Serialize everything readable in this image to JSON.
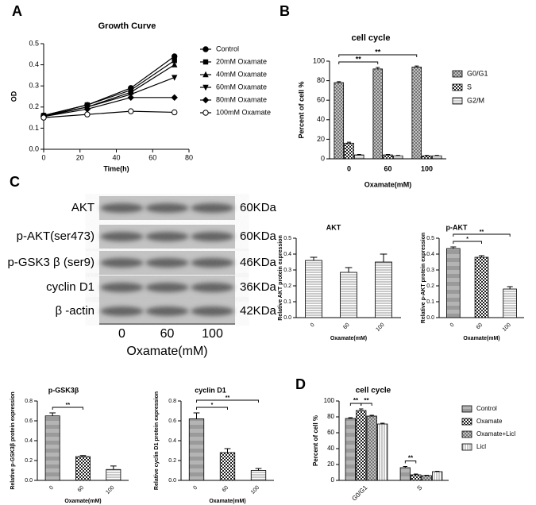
{
  "chart_data": [
    {
      "type": "line",
      "label": "A",
      "title": "Growth Curve",
      "xlabel": "Time(h)",
      "ylabel": "OD",
      "x": [
        0,
        24,
        48,
        72
      ],
      "xlim": [
        0,
        80
      ],
      "xticks": [
        0,
        20,
        40,
        60,
        80
      ],
      "ylim": [
        0,
        0.5
      ],
      "yticks": [
        {
          "value": 0,
          "label": "0.0"
        },
        {
          "value": 0.1,
          "label": "0.1"
        },
        {
          "value": 0.2,
          "label": "0.2"
        },
        {
          "value": 0.3,
          "label": "0.3"
        },
        {
          "value": 0.4,
          "label": "0.4"
        },
        {
          "value": 0.5,
          "label": "0.5"
        }
      ],
      "series": [
        {
          "name": "Control",
          "marker": "circle",
          "values": [
            0.16,
            0.21,
            0.29,
            0.44
          ]
        },
        {
          "name": "20mM Oxamate",
          "marker": "square",
          "values": [
            0.16,
            0.21,
            0.28,
            0.42
          ]
        },
        {
          "name": "40mM Oxamate",
          "marker": "triangle",
          "values": [
            0.16,
            0.2,
            0.27,
            0.4
          ]
        },
        {
          "name": "60mM Oxamate",
          "marker": "triangle-down",
          "values": [
            0.155,
            0.2,
            0.26,
            0.34
          ]
        },
        {
          "name": "80mM Oxamate",
          "marker": "diamond",
          "values": [
            0.155,
            0.19,
            0.245,
            0.245
          ]
        },
        {
          "name": "100mM Oxamate",
          "marker": "open-circle",
          "values": [
            0.15,
            0.165,
            0.18,
            0.175
          ]
        }
      ]
    },
    {
      "type": "bar",
      "label": "B",
      "title": "cell cycle",
      "xlabel": "Oxamate(mM)",
      "ylabel": "Percent of cell %",
      "categories": [
        "0",
        "60",
        "100"
      ],
      "ylim": [
        0,
        100
      ],
      "yticks": [
        0,
        20,
        40,
        60,
        80,
        100
      ],
      "series": [
        {
          "name": "G0/G1",
          "pattern": "crosshatch",
          "values": [
            78,
            92,
            94
          ],
          "errors": [
            1,
            1.5,
            1
          ]
        },
        {
          "name": "S",
          "pattern": "checker",
          "values": [
            16,
            4,
            3
          ],
          "errors": [
            1,
            0.5,
            0.5
          ]
        },
        {
          "name": "G2/M",
          "pattern": "horizontal",
          "values": [
            4,
            3,
            3
          ],
          "errors": [
            0.5,
            0.5,
            0.5
          ]
        }
      ],
      "annotations": [
        {
          "text": "**",
          "between": [
            {
              "category": "0",
              "series": "G0/G1"
            },
            {
              "category": "60",
              "series": "G0/G1"
            }
          ]
        },
        {
          "text": "**",
          "between": [
            {
              "category": "0",
              "series": "G0/G1"
            },
            {
              "category": "100",
              "series": "G0/G1"
            }
          ]
        }
      ]
    },
    {
      "type": "bar",
      "title": "AKT",
      "xlabel": "Oxamate(mM)",
      "ylabel": "Relative AKT protein expression",
      "categories": [
        "0",
        "60",
        "100"
      ],
      "values": [
        0.36,
        0.285,
        0.35
      ],
      "errors": [
        0.02,
        0.03,
        0.05
      ],
      "patterns": [
        "horizontal",
        "horizontal",
        "horizontal"
      ],
      "ylim": [
        0,
        0.5
      ],
      "yticks": [
        {
          "value": 0,
          "label": "0.0"
        },
        {
          "value": 0.1,
          "label": "0.1"
        },
        {
          "value": 0.2,
          "label": "0.2"
        },
        {
          "value": 0.3,
          "label": "0.3"
        },
        {
          "value": 0.4,
          "label": "0.4"
        },
        {
          "value": 0.5,
          "label": "0.5"
        }
      ]
    },
    {
      "type": "bar",
      "title": "p-AKT",
      "xlabel": "Oxamate(mM)",
      "ylabel": "Relative p-AKT protein expression",
      "categories": [
        "0",
        "60",
        "100"
      ],
      "values": [
        0.435,
        0.38,
        0.18
      ],
      "errors": [
        0.01,
        0.01,
        0.015
      ],
      "patterns": [
        "gradient",
        "checker",
        "horizontal"
      ],
      "ylim": [
        0,
        0.5
      ],
      "yticks": [
        {
          "value": 0,
          "label": "0.0"
        },
        {
          "value": 0.1,
          "label": "0.1"
        },
        {
          "value": 0.2,
          "label": "0.2"
        },
        {
          "value": 0.3,
          "label": "0.3"
        },
        {
          "value": 0.4,
          "label": "0.4"
        },
        {
          "value": 0.5,
          "label": "0.5"
        }
      ],
      "annotations": [
        {
          "text": "*",
          "between": [
            {
              "category": "0"
            },
            {
              "category": "60"
            }
          ]
        },
        {
          "text": "**",
          "between": [
            {
              "category": "0"
            },
            {
              "category": "100"
            }
          ]
        }
      ]
    },
    {
      "type": "bar",
      "title": "p-GSK3β",
      "xlabel": "Oxamate(mM)",
      "ylabel": "Relative p-GSK3β protein expression",
      "categories": [
        "0",
        "60",
        "100"
      ],
      "values": [
        0.65,
        0.24,
        0.11
      ],
      "errors": [
        0.03,
        0.01,
        0.035
      ],
      "patterns": [
        "gradient",
        "checker",
        "horizontal"
      ],
      "ylim": [
        0,
        0.8
      ],
      "yticks": [
        {
          "value": 0,
          "label": "0.0"
        },
        {
          "value": 0.2,
          "label": "0.2"
        },
        {
          "value": 0.4,
          "label": "0.4"
        },
        {
          "value": 0.6,
          "label": "0.6"
        },
        {
          "value": 0.8,
          "label": "0.8"
        }
      ],
      "annotations": [
        {
          "text": "**",
          "between": [
            {
              "category": "0"
            },
            {
              "category": "60"
            }
          ]
        }
      ]
    },
    {
      "type": "bar",
      "title": "cyclin D1",
      "xlabel": "Oxamate(mM)",
      "ylabel": "Relative cyclin D1 protein expression",
      "categories": [
        "0",
        "60",
        "100"
      ],
      "values": [
        0.62,
        0.28,
        0.1
      ],
      "errors": [
        0.06,
        0.04,
        0.02
      ],
      "patterns": [
        "gradient",
        "checker",
        "horizontal"
      ],
      "ylim": [
        0,
        0.8
      ],
      "yticks": [
        {
          "value": 0,
          "label": "0.0"
        },
        {
          "value": 0.2,
          "label": "0.2"
        },
        {
          "value": 0.4,
          "label": "0.4"
        },
        {
          "value": 0.6,
          "label": "0.6"
        },
        {
          "value": 0.8,
          "label": "0.8"
        }
      ],
      "annotations": [
        {
          "text": "*",
          "between": [
            {
              "category": "0"
            },
            {
              "category": "60"
            }
          ]
        },
        {
          "text": "**",
          "between": [
            {
              "category": "0"
            },
            {
              "category": "100"
            }
          ]
        }
      ]
    },
    {
      "type": "bar",
      "label": "D",
      "title": "cell cycle",
      "ylabel": "Percent of cell %",
      "categories": [
        "G0/G1",
        "S"
      ],
      "ylim": [
        0,
        100
      ],
      "yticks": [
        0,
        20,
        40,
        60,
        80,
        100
      ],
      "series": [
        {
          "name": "Control",
          "pattern": "gradient",
          "values": [
            78,
            16
          ],
          "errors": [
            1,
            1.5
          ]
        },
        {
          "name": "Oxamate",
          "pattern": "checker",
          "values": [
            88,
            7
          ],
          "errors": [
            2,
            1
          ]
        },
        {
          "name": "Oxamate+Licl",
          "pattern": "crosshatch",
          "values": [
            81,
            6
          ],
          "errors": [
            1,
            0.5
          ]
        },
        {
          "name": "Licl",
          "pattern": "vertical",
          "values": [
            71,
            11
          ],
          "errors": [
            1,
            0.5
          ]
        }
      ],
      "annotations": [
        {
          "text": "**",
          "between": [
            {
              "category": "G0/G1",
              "series": "Control"
            },
            {
              "category": "G0/G1",
              "series": "Oxamate"
            }
          ]
        },
        {
          "text": "**",
          "between": [
            {
              "category": "G0/G1",
              "series": "Oxamate"
            },
            {
              "category": "G0/G1",
              "series": "Oxamate+Licl"
            }
          ]
        },
        {
          "text": "**",
          "between": [
            {
              "category": "S",
              "series": "Control"
            },
            {
              "category": "S",
              "series": "Oxamate"
            }
          ]
        }
      ]
    }
  ],
  "blot": {
    "label": "C",
    "proteins": [
      "AKT",
      "p-AKT(ser473)",
      "p-GSK3 β (ser9)",
      "cyclin D1",
      "β -actin"
    ],
    "sizes": [
      "60KDa",
      "60KDa",
      "46KDa",
      "36KDa",
      "42KDa"
    ],
    "doses": [
      "0",
      "60",
      "100"
    ],
    "xlabel": "Oxamate(mM)"
  }
}
